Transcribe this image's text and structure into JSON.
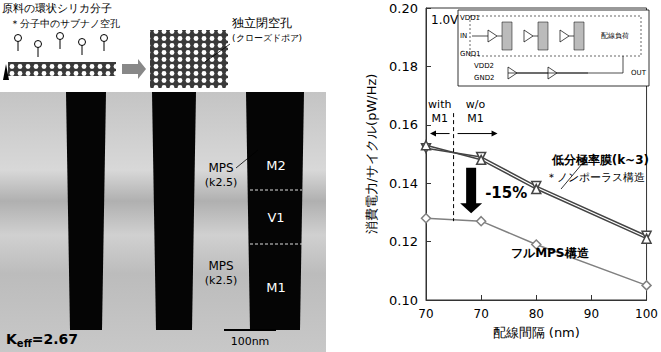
{
  "chart_data": {
    "type": "line",
    "x_label": "配線間隔 (nm)",
    "y_label": "消費電力/サイクル(pW/Hz)",
    "categories": [
      "70",
      "70",
      "80",
      "90",
      "100"
    ],
    "ylim": [
      0.1,
      0.2
    ],
    "yticks": [
      {
        "value": 0.1,
        "label": "0.10"
      },
      {
        "value": 0.12,
        "label": "0.12"
      },
      {
        "value": 0.14,
        "label": "0.14"
      },
      {
        "value": 0.16,
        "label": "0.16"
      },
      {
        "value": 0.18,
        "label": "0.18"
      },
      {
        "value": 0.2,
        "label": "0.20"
      }
    ],
    "grid": false,
    "series": [
      {
        "color": "#444444",
        "marker": "triangle_down",
        "values": [
          0.152,
          0.149,
          0.139,
          null,
          0.122
        ]
      },
      {
        "color": "#444444",
        "marker": "triangle",
        "values": [
          0.153,
          0.148,
          0.138,
          null,
          0.121
        ]
      },
      {
        "color": "#808080",
        "marker": "diamond",
        "values": [
          0.128,
          0.127,
          0.119,
          null,
          0.105
        ]
      }
    ],
    "annotations": {
      "voltage": "1.0V",
      "with_m1": [
        "with",
        "M1"
      ],
      "without_m1": [
        "w/o",
        "M1"
      ],
      "reduction": "-15%",
      "lowk_label": "低分極率膜(k~3)",
      "lowk_note": "＊ノンポーラス構造",
      "mps_label": "フルMPS構造",
      "inset": {
        "vdd1": "VDD1",
        "in": "IN",
        "gnd1": "GND1",
        "vdd2": "VDD2",
        "gnd2": "GND2",
        "out": "OUT",
        "load": "配線負荷"
      }
    }
  },
  "panel": {
    "source_title": "原料の環状シリカ分子",
    "source_note": "＊分子中のサブナノ空孔",
    "pore_title": "独立閉空孔",
    "pore_note": "(クローズドポア)",
    "material_upper": [
      "MPS",
      "(k2.5)"
    ],
    "material_lower": [
      "MPS",
      "(k2.5)"
    ],
    "layers": [
      "M2",
      "V1",
      "M1"
    ],
    "keff": {
      "symbol": "K",
      "subscript": "eff",
      "value": "=2.67"
    },
    "scale_bar": "100nm"
  }
}
